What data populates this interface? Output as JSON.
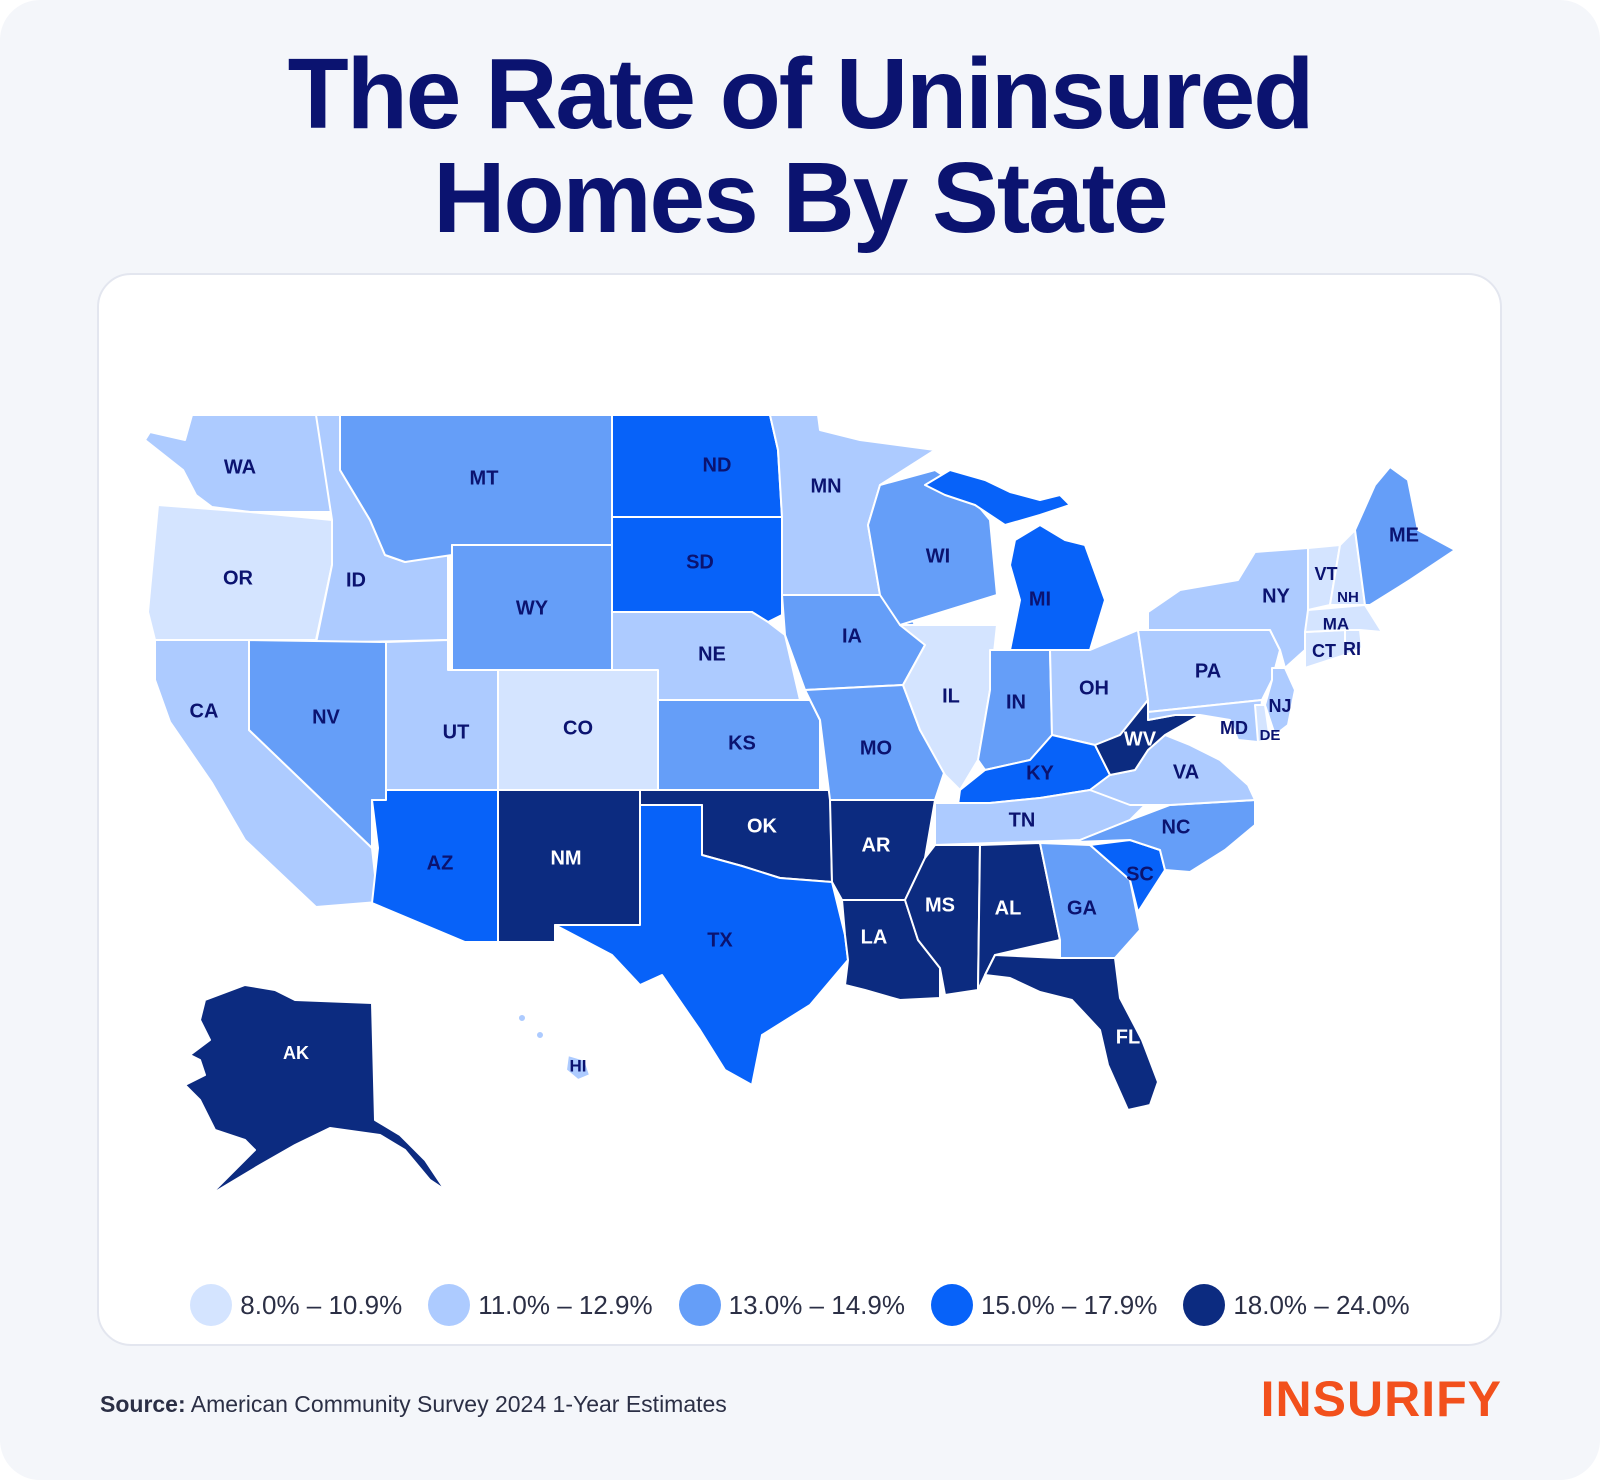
{
  "title": {
    "line1": "The Rate of Uninsured",
    "line2": "Homes By State"
  },
  "colors": {
    "bin1": "#d4e4ff",
    "bin2": "#adcbff",
    "bin3": "#659ef8",
    "bin4": "#0762f9",
    "bin5": "#0c2b80",
    "title": "#0b1370",
    "brand": "#f2501c"
  },
  "legend": [
    {
      "label": "8.0% – 10.9%",
      "color": "#d4e4ff"
    },
    {
      "label": "11.0% – 12.9%",
      "color": "#adcbff"
    },
    {
      "label": "13.0% – 14.9%",
      "color": "#659ef8"
    },
    {
      "label": "15.0% – 17.9%",
      "color": "#0762f9"
    },
    {
      "label": "18.0% – 24.0%",
      "color": "#0c2b80"
    }
  ],
  "states": {
    "WA": "WA",
    "OR": "OR",
    "CA": "CA",
    "ID": "ID",
    "NV": "NV",
    "MT": "MT",
    "WY": "WY",
    "UT": "UT",
    "CO": "CO",
    "AZ": "AZ",
    "NM": "NM",
    "ND": "ND",
    "SD": "SD",
    "NE": "NE",
    "KS": "KS",
    "OK": "OK",
    "TX": "TX",
    "MN": "MN",
    "IA": "IA",
    "MO": "MO",
    "AR": "AR",
    "LA": "LA",
    "WI": "WI",
    "IL": "IL",
    "MI": "MI",
    "IN": "IN",
    "OH": "OH",
    "KY": "KY",
    "TN": "TN",
    "MS": "MS",
    "AL": "AL",
    "GA": "GA",
    "FL": "FL",
    "SC": "SC",
    "NC": "NC",
    "VA": "VA",
    "WV": "WV",
    "PA": "PA",
    "NY": "NY",
    "MD": "MD",
    "DE": "DE",
    "NJ": "NJ",
    "CT": "CT",
    "RI": "RI",
    "MA": "MA",
    "VT": "VT",
    "NH": "NH",
    "ME": "ME",
    "AK": "AK",
    "HI": "HI"
  },
  "source": {
    "label": "Source:",
    "text": "American Community Survey 2024 1-Year Estimates"
  },
  "brand": "INSURIFY"
}
